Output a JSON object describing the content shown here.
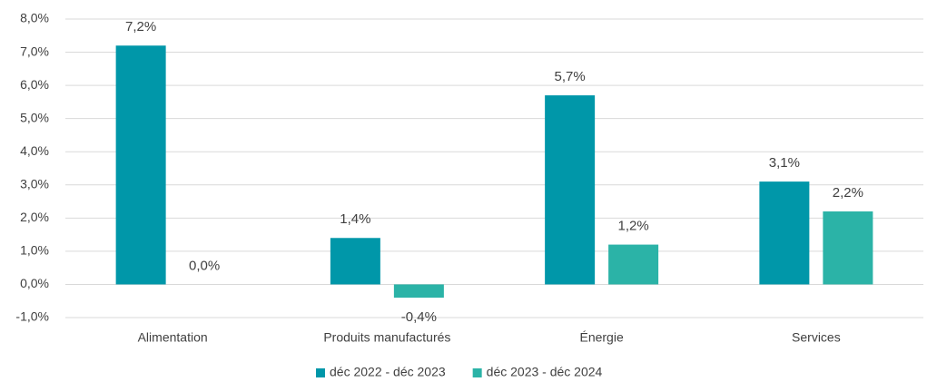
{
  "chart_data": {
    "type": "bar",
    "categories": [
      "Alimentation",
      "Produits manufacturés",
      "Énergie",
      "Services"
    ],
    "series": [
      {
        "name": "déc 2022 - déc 2023",
        "color": "#0097a9",
        "values": [
          7.2,
          1.4,
          5.7,
          3.1
        ],
        "value_labels": [
          "7,2%",
          "1,4%",
          "5,7%",
          "3,1%"
        ]
      },
      {
        "name": "déc 2023 - déc 2024",
        "color": "#2bb3a7",
        "values": [
          0.0,
          -0.4,
          1.2,
          2.2
        ],
        "value_labels": [
          "0,0%",
          "-0,4%",
          "1,2%",
          "2,2%"
        ]
      }
    ],
    "ylim": [
      -1,
      8
    ],
    "yticks": [
      {
        "value": -1,
        "label": "-1,0%"
      },
      {
        "value": 0,
        "label": "0,0%"
      },
      {
        "value": 1,
        "label": "1,0%"
      },
      {
        "value": 2,
        "label": "2,0%"
      },
      {
        "value": 3,
        "label": "3,0%"
      },
      {
        "value": 4,
        "label": "4,0%"
      },
      {
        "value": 5,
        "label": "5,0%"
      },
      {
        "value": 6,
        "label": "6,0%"
      },
      {
        "value": 7,
        "label": "7,0%"
      },
      {
        "value": 8,
        "label": "8,0%"
      }
    ],
    "grid": true,
    "legend": "bottom"
  }
}
